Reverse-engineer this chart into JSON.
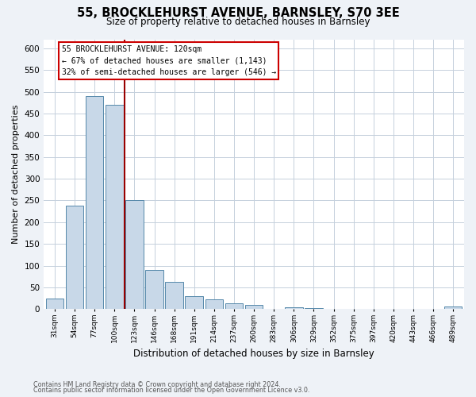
{
  "title_line1": "55, BROCKLEHURST AVENUE, BARNSLEY, S70 3EE",
  "title_line2": "Size of property relative to detached houses in Barnsley",
  "xlabel": "Distribution of detached houses by size in Barnsley",
  "ylabel": "Number of detached properties",
  "footnote_line1": "Contains HM Land Registry data © Crown copyright and database right 2024.",
  "footnote_line2": "Contains public sector information licensed under the Open Government Licence v3.0.",
  "bar_labels": [
    "31sqm",
    "54sqm",
    "77sqm",
    "100sqm",
    "123sqm",
    "146sqm",
    "168sqm",
    "191sqm",
    "214sqm",
    "237sqm",
    "260sqm",
    "283sqm",
    "306sqm",
    "329sqm",
    "352sqm",
    "375sqm",
    "397sqm",
    "420sqm",
    "443sqm",
    "466sqm",
    "489sqm"
  ],
  "bar_values": [
    25,
    238,
    490,
    470,
    250,
    90,
    63,
    30,
    22,
    13,
    10,
    0,
    5,
    2,
    1,
    1,
    0,
    0,
    0,
    0,
    6
  ],
  "bar_color": "#c8d8e8",
  "bar_edge_color": "#5588aa",
  "annotation_text_line1": "55 BROCKLEHURST AVENUE: 120sqm",
  "annotation_text_line2": "← 67% of detached houses are smaller (1,143)",
  "annotation_text_line3": "32% of semi-detached houses are larger (546) →",
  "annotation_box_color": "white",
  "annotation_box_edge_color": "#cc0000",
  "property_line_color": "#990000",
  "ylim": [
    0,
    620
  ],
  "yticks": [
    0,
    50,
    100,
    150,
    200,
    250,
    300,
    350,
    400,
    450,
    500,
    550,
    600
  ],
  "background_color": "#eef2f7",
  "plot_bg_color": "white",
  "grid_color": "#c5d0dc"
}
